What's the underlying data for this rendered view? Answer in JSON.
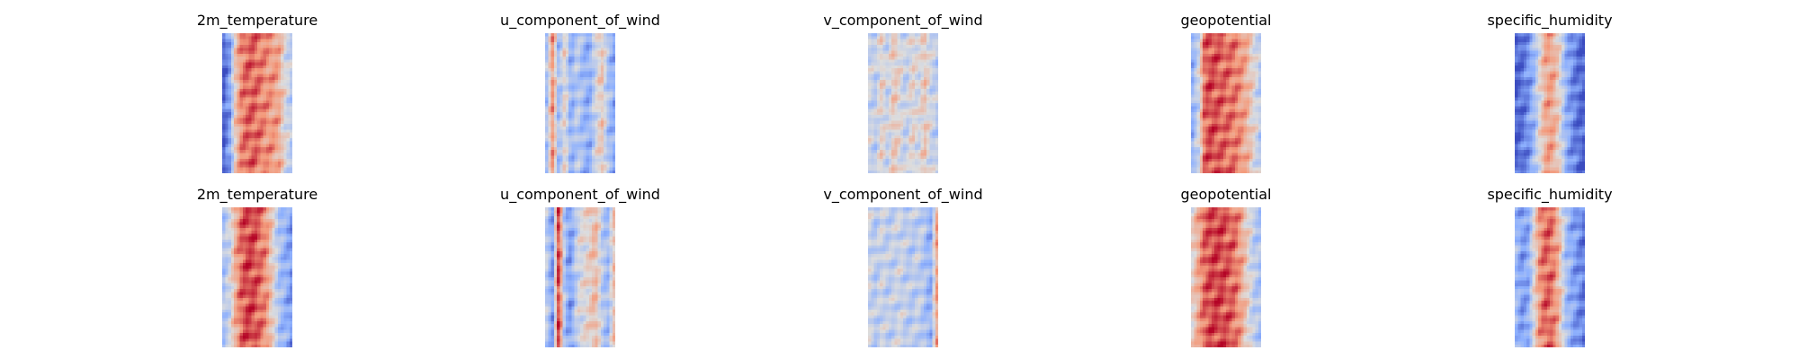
{
  "chart_data": [
    {
      "type": "heatmap",
      "title": "2m_temperature",
      "colormap": "coolwarm",
      "axes": "off",
      "profile": [
        0.06,
        0.22,
        0.62,
        0.8,
        0.84,
        0.84,
        0.8,
        0.76,
        0.74,
        0.7,
        0.5,
        0.4
      ]
    },
    {
      "type": "heatmap",
      "title": "u_component_of_wind",
      "colormap": "coolwarm",
      "axes": "off",
      "profile": [
        0.35,
        0.75,
        0.3,
        0.55,
        0.25,
        0.4,
        0.3,
        0.25,
        0.45,
        0.6,
        0.35,
        0.25
      ]
    },
    {
      "type": "heatmap",
      "title": "v_component_of_wind",
      "colormap": "coolwarm",
      "axes": "off",
      "profile": [
        0.45,
        0.4,
        0.55,
        0.42,
        0.6,
        0.5,
        0.4,
        0.55,
        0.45,
        0.6,
        0.45,
        0.4
      ]
    },
    {
      "type": "heatmap",
      "title": "geopotential",
      "colormap": "coolwarm",
      "axes": "off",
      "profile": [
        0.28,
        0.45,
        0.85,
        0.88,
        0.86,
        0.84,
        0.82,
        0.8,
        0.74,
        0.66,
        0.52,
        0.4
      ]
    },
    {
      "type": "heatmap",
      "title": "specific_humidity",
      "colormap": "coolwarm",
      "axes": "off",
      "profile": [
        0.06,
        0.1,
        0.18,
        0.32,
        0.55,
        0.72,
        0.7,
        0.55,
        0.3,
        0.18,
        0.1,
        0.06
      ]
    },
    {
      "type": "heatmap",
      "title": "2m_temperature",
      "colormap": "coolwarm",
      "axes": "off",
      "profile": [
        0.35,
        0.45,
        0.7,
        0.85,
        0.9,
        0.88,
        0.82,
        0.75,
        0.55,
        0.35,
        0.28,
        0.2
      ]
    },
    {
      "type": "heatmap",
      "title": "u_component_of_wind",
      "colormap": "coolwarm",
      "axes": "off",
      "profile": [
        0.4,
        0.2,
        0.95,
        0.3,
        0.2,
        0.45,
        0.5,
        0.55,
        0.65,
        0.4,
        0.3,
        0.6
      ]
    },
    {
      "type": "heatmap",
      "title": "v_component_of_wind",
      "colormap": "coolwarm",
      "axes": "off",
      "profile": [
        0.45,
        0.38,
        0.45,
        0.4,
        0.42,
        0.45,
        0.4,
        0.38,
        0.42,
        0.35,
        0.25,
        0.7
      ]
    },
    {
      "type": "heatmap",
      "title": "geopotential",
      "colormap": "coolwarm",
      "axes": "off",
      "profile": [
        0.55,
        0.7,
        0.85,
        0.88,
        0.9,
        0.88,
        0.85,
        0.82,
        0.7,
        0.55,
        0.4,
        0.35
      ]
    },
    {
      "type": "heatmap",
      "title": "specific_humidity",
      "colormap": "coolwarm",
      "axes": "off",
      "profile": [
        0.3,
        0.2,
        0.25,
        0.55,
        0.78,
        0.85,
        0.8,
        0.65,
        0.35,
        0.25,
        0.18,
        0.12
      ]
    }
  ]
}
